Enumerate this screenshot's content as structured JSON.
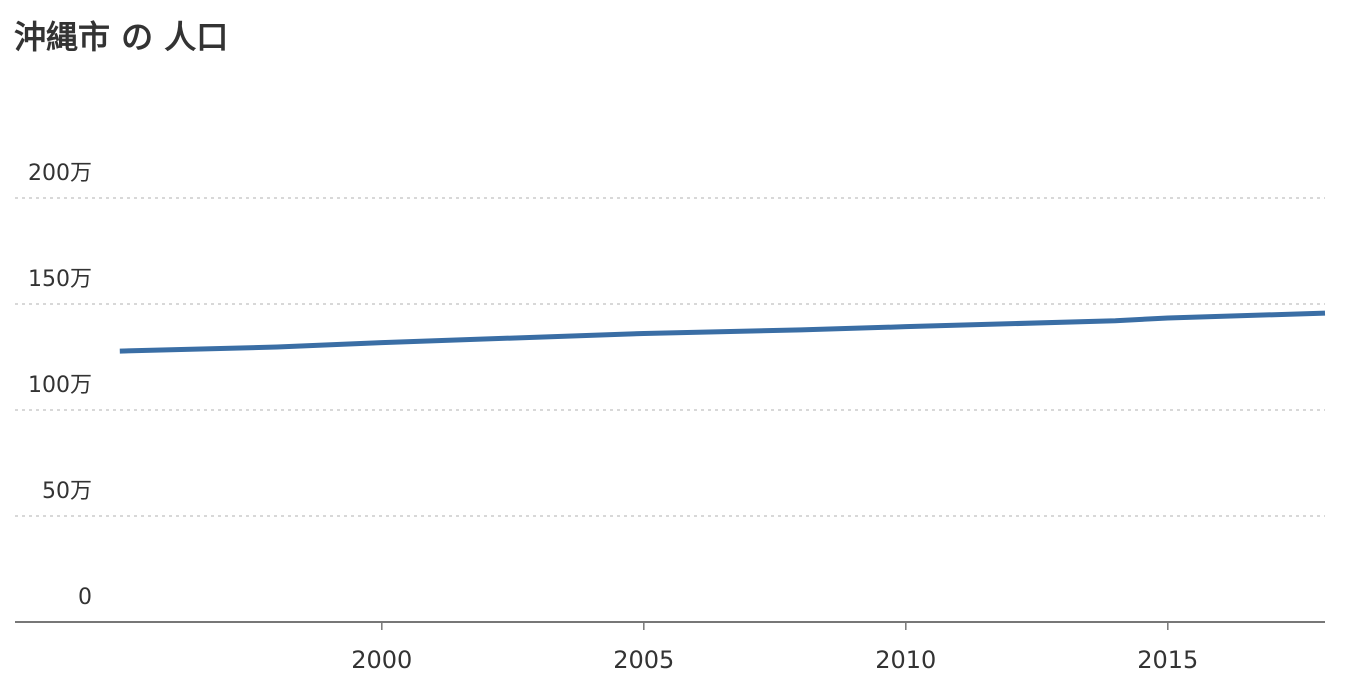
{
  "chart_data": {
    "type": "line",
    "title": "沖縄市 の 人口",
    "x": [
      1995,
      1998,
      2000,
      2005,
      2008,
      2010,
      2014,
      2015,
      2018
    ],
    "series": [
      {
        "name": "人口",
        "color": "#3a6ea5",
        "values": [
          1278000,
          1297000,
          1318000,
          1361000,
          1378000,
          1393000,
          1421000,
          1434000,
          1457000
        ]
      }
    ],
    "xlim": [
      1993,
      2018
    ],
    "xticks": [
      2000,
      2005,
      2010,
      2015
    ],
    "ylim": [
      0,
      2000000
    ],
    "yticks": [
      0,
      {
        "value": 500000,
        "label": "50万"
      },
      {
        "value": 1000000,
        "label": "100万"
      },
      {
        "value": 1500000,
        "label": "150万"
      },
      {
        "value": 2000000,
        "label": "200万"
      }
    ],
    "grid": true
  }
}
